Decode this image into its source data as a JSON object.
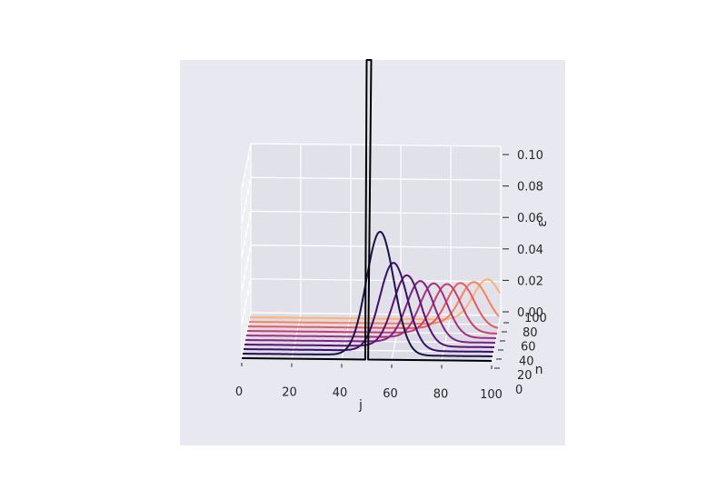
{
  "chart_data": {
    "type": "line",
    "projection": "3d",
    "title": "",
    "xlabel": "j",
    "ylabel": "n",
    "zlabel": "ε",
    "xlim": [
      0,
      100
    ],
    "ylim": [
      0,
      100
    ],
    "zlim": [
      0,
      0.1
    ],
    "x_ticks": [
      "0",
      "20",
      "40",
      "60",
      "80",
      "100"
    ],
    "y_ticks": [
      "0",
      "20",
      "40",
      "60",
      "80",
      "100"
    ],
    "z_ticks": [
      "0.00",
      "0.02",
      "0.04",
      "0.06",
      "0.08",
      "0.10"
    ],
    "grid": true,
    "background": "#e8e8f0",
    "colormap": "magma",
    "series": [
      {
        "n": 0,
        "shape": "spike",
        "center_j": 50,
        "peak": 1.0,
        "color": "#000004"
      },
      {
        "n": 10,
        "shape": "gaussian",
        "center_j": 55,
        "peak": 0.073,
        "color": "#1d1147"
      },
      {
        "n": 20,
        "shape": "gaussian",
        "center_j": 60,
        "peak": 0.052,
        "color": "#3b0f70"
      },
      {
        "n": 30,
        "shape": "gaussian",
        "center_j": 65,
        "peak": 0.042,
        "color": "#5c126e"
      },
      {
        "n": 40,
        "shape": "gaussian",
        "center_j": 70,
        "peak": 0.036,
        "color": "#7e2482"
      },
      {
        "n": 50,
        "shape": "gaussian",
        "center_j": 75,
        "peak": 0.032,
        "color": "#a3307e"
      },
      {
        "n": 60,
        "shape": "gaussian",
        "center_j": 80,
        "peak": 0.029,
        "color": "#c83e73"
      },
      {
        "n": 70,
        "shape": "gaussian",
        "center_j": 85,
        "peak": 0.027,
        "color": "#e55964"
      },
      {
        "n": 80,
        "shape": "gaussian",
        "center_j": 90,
        "peak": 0.025,
        "color": "#f7825b"
      },
      {
        "n": 90,
        "shape": "gaussian",
        "center_j": 95,
        "peak": 0.024,
        "color": "#feb078"
      }
    ]
  }
}
